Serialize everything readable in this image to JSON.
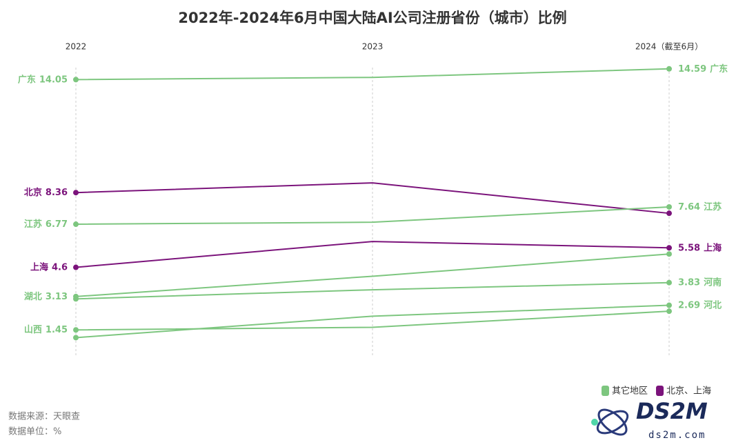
{
  "chart_data": {
    "type": "slope",
    "title": "2022年-2024年6月中国大陆AI公司注册省份（城市）比例",
    "categories": [
      "2022",
      "2023",
      "2024（截至6月）"
    ],
    "ylim": [
      0,
      15
    ],
    "series": [
      {
        "name": "广东",
        "color": "#7dc67f",
        "values": [
          14.05,
          14.16,
          14.59
        ],
        "value_labels": [
          "14.05",
          null,
          "14.59"
        ]
      },
      {
        "name": "北京",
        "color": "#7b137b",
        "values": [
          8.36,
          8.85,
          7.32
        ],
        "value_labels": [
          "8.36",
          null,
          null
        ]
      },
      {
        "name": "江苏",
        "color": "#7dc67f",
        "values": [
          6.77,
          6.87,
          7.64
        ],
        "value_labels": [
          "6.77",
          null,
          "7.64"
        ]
      },
      {
        "name": "上海",
        "color": "#7b137b",
        "values": [
          4.6,
          5.9,
          5.58
        ],
        "value_labels": [
          "4.6",
          null,
          "5.58"
        ]
      },
      {
        "name": "湖北",
        "color": "#7dc67f",
        "values": [
          3.13,
          4.15,
          5.27
        ],
        "value_labels": [
          "3.13",
          null,
          null
        ]
      },
      {
        "name": "河南",
        "color": "#7dc67f",
        "values": [
          3.01,
          3.47,
          3.83
        ],
        "value_labels": [
          null,
          null,
          "3.83"
        ]
      },
      {
        "name": "河北",
        "color": "#7dc67f",
        "values": [
          1.06,
          2.14,
          2.69
        ],
        "value_labels": [
          null,
          null,
          "2.69"
        ]
      },
      {
        "name": "山西",
        "color": "#7dc67f",
        "values": [
          1.45,
          1.58,
          2.39
        ],
        "value_labels": [
          "1.45",
          null,
          null
        ]
      }
    ],
    "legend": [
      {
        "name": "其它地区",
        "color": "#7dc67f"
      },
      {
        "name": "北京、上海",
        "color": "#7b137b"
      }
    ],
    "source": "数据来源：天眼查",
    "unit": "数据单位：%",
    "logo": "DS2M",
    "logo_url": "ds2m.com"
  }
}
